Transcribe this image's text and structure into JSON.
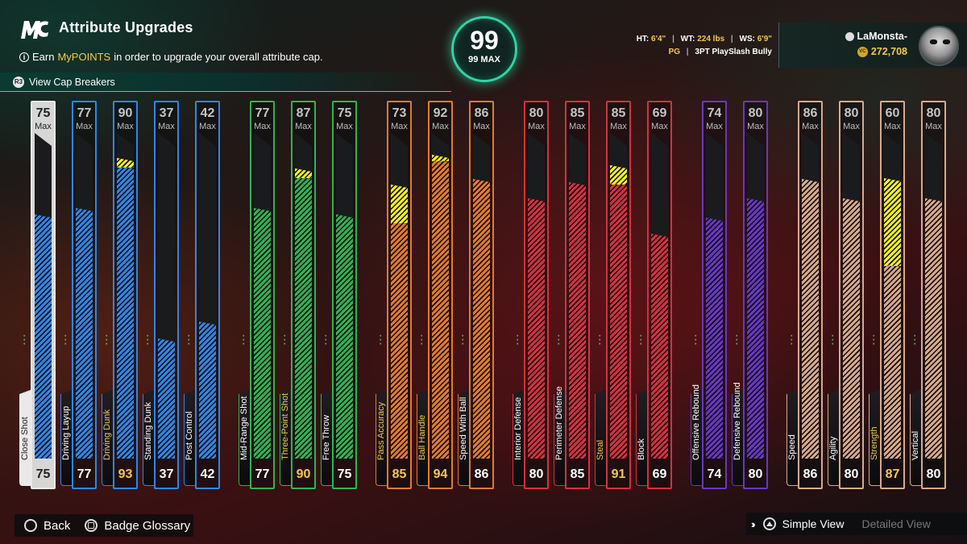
{
  "header": {
    "logo_text": "MC",
    "title": "Attribute Upgrades",
    "subtitle_pre": "Earn ",
    "subtitle_highlight": "MyPOINTS",
    "subtitle_post": " in order to upgrade your overall attribute cap.",
    "cap_breakers_label": "View Cap Breakers"
  },
  "overall": {
    "value": "99",
    "max_label": "99 MAX"
  },
  "player": {
    "ht_label": "HT:",
    "ht_value": "6'4\"",
    "wt_label": "WT:",
    "wt_value": "224 lbs",
    "ws_label": "WS:",
    "ws_value": "6'9\"",
    "position": "PG",
    "archetype": "3PT PlaySlash Bully",
    "name": "LaMonsta-",
    "vc": "272,708"
  },
  "max_label": "Max",
  "attributes": [
    {
      "name": "Close Shot",
      "max": 75,
      "current": 75,
      "upgraded": false,
      "color": "white"
    },
    {
      "name": "Driving Layup",
      "max": 77,
      "current": 77,
      "upgraded": false,
      "color": "blue"
    },
    {
      "name": "Driving Dunk",
      "max": 90,
      "current": 93,
      "upgraded": true,
      "color": "blue"
    },
    {
      "name": "Standing Dunk",
      "max": 37,
      "current": 37,
      "upgraded": false,
      "color": "blue"
    },
    {
      "name": "Post Control",
      "max": 42,
      "current": 42,
      "upgraded": false,
      "color": "blue"
    },
    {
      "name": "Mid-Range Shot",
      "max": 77,
      "current": 77,
      "upgraded": false,
      "color": "green"
    },
    {
      "name": "Three-Point Shot",
      "max": 87,
      "current": 90,
      "upgraded": true,
      "color": "green"
    },
    {
      "name": "Free Throw",
      "max": 75,
      "current": 75,
      "upgraded": false,
      "color": "green"
    },
    {
      "name": "Pass Accuracy",
      "max": 73,
      "current": 85,
      "upgraded": true,
      "color": "orange"
    },
    {
      "name": "Ball Handle",
      "max": 92,
      "current": 94,
      "upgraded": true,
      "color": "orange"
    },
    {
      "name": "Speed With Ball",
      "max": 86,
      "current": 86,
      "upgraded": false,
      "color": "orange"
    },
    {
      "name": "Interior Defense",
      "max": 80,
      "current": 80,
      "upgraded": false,
      "color": "red"
    },
    {
      "name": "Perimeter Defense",
      "max": 85,
      "current": 85,
      "upgraded": false,
      "color": "red"
    },
    {
      "name": "Steal",
      "max": 85,
      "current": 91,
      "upgraded": true,
      "color": "red"
    },
    {
      "name": "Block",
      "max": 69,
      "current": 69,
      "upgraded": false,
      "color": "red"
    },
    {
      "name": "Offensive Rebound",
      "max": 74,
      "current": 74,
      "upgraded": false,
      "color": "purple"
    },
    {
      "name": "Defensive Rebound",
      "max": 80,
      "current": 80,
      "upgraded": false,
      "color": "purple"
    },
    {
      "name": "Speed",
      "max": 86,
      "current": 86,
      "upgraded": false,
      "color": "tan"
    },
    {
      "name": "Agility",
      "max": 80,
      "current": 80,
      "upgraded": false,
      "color": "tan"
    },
    {
      "name": "Strength",
      "max": 60,
      "current": 87,
      "upgraded": true,
      "color": "tan"
    },
    {
      "name": "Vertical",
      "max": 80,
      "current": 80,
      "upgraded": false,
      "color": "tan"
    }
  ],
  "colors": {
    "white": "#e9e9e9",
    "blue": "#2f86e6",
    "green": "#2fb452",
    "orange": "#e67a2a",
    "red": "#d8303f",
    "purple": "#6a36c4",
    "tan": "#d9a98a",
    "upgrade": "#f3ef1e",
    "accent": "#2fd6a4",
    "gold": "#f2c94c"
  },
  "footer": {
    "back_label": "Back",
    "glossary_label": "Badge Glossary",
    "simple_view_label": "Simple View",
    "detailed_view_label": "Detailed View"
  }
}
